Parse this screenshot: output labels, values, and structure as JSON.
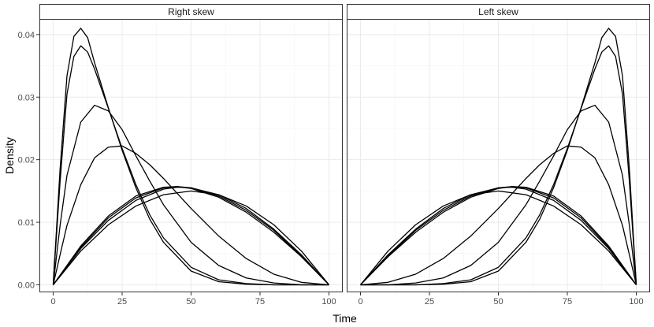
{
  "chart_data": {
    "type": "line",
    "xlabel": "Time",
    "ylabel": "Density",
    "xlim": [
      -5,
      105
    ],
    "ylim": [
      -0.0012,
      0.0425
    ],
    "x_ticks": [
      0,
      25,
      50,
      75,
      100
    ],
    "x_tick_labels": [
      "0",
      "25",
      "50",
      "75",
      "100"
    ],
    "y_ticks": [
      0,
      0.01,
      0.02,
      0.03,
      0.04
    ],
    "y_tick_labels": [
      "0.00",
      "0.01",
      "0.02",
      "0.03",
      "0.04"
    ],
    "grid": true,
    "panels": [
      {
        "strip": "Right skew",
        "curves": [
          {
            "x": [
              0,
              2.5,
              5,
              7.5,
              10,
              12.5,
              15,
              20,
              25,
              30,
              35,
              40,
              50,
              60,
              70,
              80,
              90,
              100
            ],
            "y": [
              0,
              0.0185,
              0.0334,
              0.0397,
              0.041,
              0.0395,
              0.0355,
              0.0283,
              0.0215,
              0.0155,
              0.0105,
              0.0068,
              0.0022,
              0.0005,
              0.0001,
              0,
              0,
              0
            ]
          },
          {
            "x": [
              0,
              2.5,
              5,
              7.5,
              10,
              12.5,
              15,
              20,
              25,
              30,
              35,
              40,
              50,
              60,
              70,
              80,
              90,
              100
            ],
            "y": [
              0,
              0.0165,
              0.0305,
              0.0365,
              0.0382,
              0.0372,
              0.0345,
              0.0282,
              0.0218,
              0.016,
              0.0112,
              0.0075,
              0.0028,
              0.0008,
              0.0002,
              0,
              0,
              0
            ]
          },
          {
            "x": [
              0,
              2.5,
              5,
              10,
              15,
              20,
              25,
              30,
              35,
              40,
              50,
              60,
              70,
              80,
              90,
              100
            ],
            "y": [
              0,
              0.0095,
              0.0175,
              0.026,
              0.0287,
              0.0278,
              0.0248,
              0.0206,
              0.0166,
              0.0128,
              0.0068,
              0.0031,
              0.0011,
              0.0003,
              0,
              0
            ]
          },
          {
            "x": [
              0,
              2.5,
              5,
              10,
              15,
              20,
              25,
              30,
              35,
              40,
              50,
              60,
              70,
              80,
              90,
              100
            ],
            "y": [
              0,
              0.0048,
              0.0095,
              0.016,
              0.0203,
              0.022,
              0.0222,
              0.021,
              0.0192,
              0.017,
              0.0122,
              0.0078,
              0.0042,
              0.0017,
              0.0004,
              0
            ]
          },
          {
            "x": [
              0,
              10,
              20,
              30,
              40,
              50,
              60,
              70,
              80,
              90,
              100
            ],
            "y": [
              0,
              0.0054,
              0.0096,
              0.0126,
              0.0144,
              0.015,
              0.0144,
              0.0126,
              0.0096,
              0.0054,
              0
            ]
          },
          {
            "x": [
              0,
              10,
              20,
              30,
              40,
              45,
              50,
              60,
              70,
              80,
              90,
              100
            ],
            "y": [
              0,
              0.0058,
              0.0103,
              0.0135,
              0.0153,
              0.0156,
              0.0155,
              0.0144,
              0.0122,
              0.0089,
              0.0048,
              0
            ]
          },
          {
            "x": [
              0,
              10,
              20,
              30,
              40,
              45,
              50,
              60,
              70,
              80,
              90,
              100
            ],
            "y": [
              0,
              0.006,
              0.0107,
              0.0139,
              0.0155,
              0.0157,
              0.0155,
              0.0142,
              0.0119,
              0.0087,
              0.0046,
              0
            ]
          },
          {
            "x": [
              0,
              10,
              20,
              30,
              40,
              45,
              50,
              60,
              70,
              80,
              90,
              100
            ],
            "y": [
              0,
              0.0062,
              0.011,
              0.0142,
              0.0156,
              0.0157,
              0.0154,
              0.014,
              0.0116,
              0.0084,
              0.0045,
              0
            ]
          }
        ]
      },
      {
        "strip": "Left skew",
        "curves": [
          {
            "x": [
              0,
              10,
              20,
              30,
              40,
              50,
              60,
              65,
              70,
              75,
              80,
              85,
              87.5,
              90,
              92.5,
              95,
              97.5,
              100
            ],
            "y": [
              0,
              0,
              0,
              0.0001,
              0.0005,
              0.0022,
              0.0068,
              0.0105,
              0.0155,
              0.0215,
              0.0283,
              0.0355,
              0.0395,
              0.041,
              0.0397,
              0.0334,
              0.0185,
              0
            ]
          },
          {
            "x": [
              0,
              10,
              20,
              30,
              40,
              50,
              60,
              65,
              70,
              75,
              80,
              85,
              87.5,
              90,
              92.5,
              95,
              97.5,
              100
            ],
            "y": [
              0,
              0,
              0,
              0.0002,
              0.0008,
              0.0028,
              0.0075,
              0.0112,
              0.016,
              0.0218,
              0.0282,
              0.0345,
              0.0372,
              0.0382,
              0.0365,
              0.0305,
              0.0165,
              0
            ]
          },
          {
            "x": [
              0,
              10,
              20,
              30,
              40,
              50,
              60,
              65,
              70,
              75,
              80,
              85,
              90,
              95,
              97.5,
              100
            ],
            "y": [
              0,
              0,
              0.0003,
              0.0011,
              0.0031,
              0.0068,
              0.0128,
              0.0166,
              0.0206,
              0.0248,
              0.0278,
              0.0287,
              0.026,
              0.0175,
              0.0095,
              0
            ]
          },
          {
            "x": [
              0,
              10,
              20,
              30,
              40,
              50,
              60,
              65,
              70,
              75,
              80,
              85,
              90,
              95,
              97.5,
              100
            ],
            "y": [
              0,
              0.0004,
              0.0017,
              0.0042,
              0.0078,
              0.0122,
              0.017,
              0.0192,
              0.021,
              0.0222,
              0.022,
              0.0203,
              0.016,
              0.0095,
              0.0048,
              0
            ]
          },
          {
            "x": [
              0,
              10,
              20,
              30,
              40,
              50,
              60,
              70,
              80,
              90,
              100
            ],
            "y": [
              0,
              0.0054,
              0.0096,
              0.0126,
              0.0144,
              0.015,
              0.0144,
              0.0126,
              0.0096,
              0.0054,
              0
            ]
          },
          {
            "x": [
              0,
              10,
              20,
              30,
              40,
              50,
              55,
              60,
              70,
              80,
              90,
              100
            ],
            "y": [
              0,
              0.0048,
              0.0089,
              0.0122,
              0.0144,
              0.0155,
              0.0156,
              0.0153,
              0.0135,
              0.0103,
              0.0058,
              0
            ]
          },
          {
            "x": [
              0,
              10,
              20,
              30,
              40,
              50,
              55,
              60,
              70,
              80,
              90,
              100
            ],
            "y": [
              0,
              0.0046,
              0.0087,
              0.0119,
              0.0142,
              0.0155,
              0.0157,
              0.0155,
              0.0139,
              0.0107,
              0.006,
              0
            ]
          },
          {
            "x": [
              0,
              10,
              20,
              30,
              40,
              50,
              55,
              60,
              70,
              80,
              90,
              100
            ],
            "y": [
              0,
              0.0045,
              0.0084,
              0.0116,
              0.014,
              0.0154,
              0.0157,
              0.0156,
              0.0142,
              0.011,
              0.0062,
              0
            ]
          }
        ]
      }
    ]
  }
}
